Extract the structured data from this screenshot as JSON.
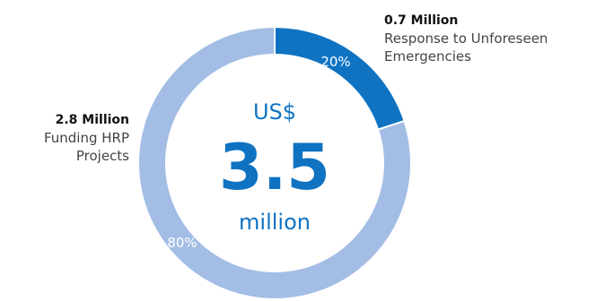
{
  "chart_data": {
    "type": "pie",
    "variant": "donut",
    "center": {
      "top": "US$",
      "value": "3.5",
      "bottom": "million"
    },
    "slices": [
      {
        "label": "Response to Unforeseen Emergencies",
        "amount_label": "0.7 Million",
        "value": 0.7,
        "percent": 20,
        "percent_label": "20%",
        "color": "#0f73c2"
      },
      {
        "label": "Funding HRP Projects",
        "amount_label": "2.8 Million",
        "value": 2.8,
        "percent": 80,
        "percent_label": "80%",
        "color": "#a3bde5"
      }
    ]
  }
}
